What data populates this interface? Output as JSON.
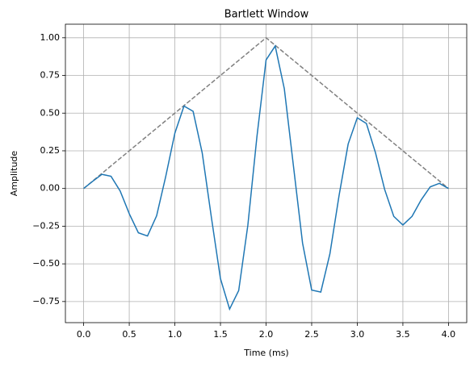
{
  "chart_data": {
    "type": "line",
    "title": "Bartlett Window",
    "x_label": "Time (ms)",
    "y_label": "Amplitude",
    "series": [
      {
        "color": "#808080",
        "dashed": true,
        "x": [
          0,
          2,
          4
        ],
        "values": [
          0,
          1,
          0
        ]
      },
      {
        "color": "#1f77b4",
        "dashed": false,
        "x": [
          0,
          0.1,
          0.2,
          0.3,
          0.4,
          0.5,
          0.6,
          0.7,
          0.8,
          0.9,
          1,
          1.1,
          1.2,
          1.3,
          1.4,
          1.5,
          1.6,
          1.7,
          1.8,
          1.9,
          2,
          2.1,
          2.2,
          2.3,
          2.4,
          2.5,
          2.6,
          2.7,
          2.8,
          2.9,
          3,
          3.1,
          3.2,
          3.3,
          3.4,
          3.5,
          3.6,
          3.7,
          3.8,
          3.9,
          4
        ],
        "values": [
          0,
          0.048,
          0.094,
          0.081,
          -0.016,
          -0.167,
          -0.294,
          -0.315,
          -0.181,
          0.08,
          0.367,
          0.547,
          0.512,
          0.236,
          -0.19,
          -0.598,
          -0.8,
          -0.677,
          -0.245,
          0.345,
          0.853,
          0.945,
          0.662,
          0.15,
          -0.362,
          -0.674,
          -0.687,
          -0.433,
          -0.048,
          0.295,
          0.469,
          0.431,
          0.236,
          -0.006,
          -0.185,
          -0.242,
          -0.185,
          -0.076,
          0.011,
          0.034,
          0
        ]
      }
    ],
    "xlim": [
      -0.2,
      4.2
    ],
    "ylim": [
      -0.89,
      1.09
    ],
    "xticks": [
      {
        "value": 0,
        "label": "0.0"
      },
      {
        "value": 0.5,
        "label": "0.5"
      },
      {
        "value": 1,
        "label": "1.0"
      },
      {
        "value": 1.5,
        "label": "1.5"
      },
      {
        "value": 2,
        "label": "2.0"
      },
      {
        "value": 2.5,
        "label": "2.5"
      },
      {
        "value": 3,
        "label": "3.0"
      },
      {
        "value": 3.5,
        "label": "3.5"
      },
      {
        "value": 4,
        "label": "4.0"
      }
    ],
    "yticks": [
      {
        "value": -0.75,
        "label": "−0.75"
      },
      {
        "value": -0.5,
        "label": "−0.50"
      },
      {
        "value": -0.25,
        "label": "−0.25"
      },
      {
        "value": 0,
        "label": "0.00"
      },
      {
        "value": 0.25,
        "label": "0.25"
      },
      {
        "value": 0.5,
        "label": "0.50"
      },
      {
        "value": 0.75,
        "label": "0.75"
      },
      {
        "value": 1,
        "label": "1.00"
      }
    ],
    "grid": true
  }
}
